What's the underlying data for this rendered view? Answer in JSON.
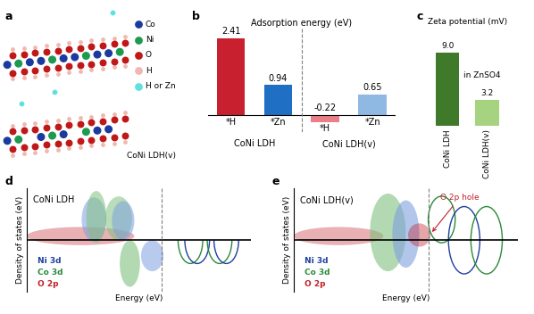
{
  "chart_data": [
    {
      "type": "bar",
      "panel": "b",
      "title": "Adsorption energy (eV)",
      "categories": [
        "*H",
        "*Zn",
        "*H",
        "*Zn"
      ],
      "groups": [
        "CoNi LDH",
        "CoNi LDH",
        "CoNi LDH(v)",
        "CoNi LDH(v)"
      ],
      "values": [
        2.41,
        0.94,
        -0.22,
        0.65
      ],
      "colors": [
        "#c8202e",
        "#1f6fc4",
        "#ea7f8a",
        "#8fb8e2"
      ],
      "data_labels": true,
      "tick_labels": false
    },
    {
      "type": "bar",
      "panel": "c",
      "title": "Zeta potential (mV)",
      "annotation": "in ZnSO4",
      "categories": [
        "CoNi LDH",
        "CoNi LDH(v)"
      ],
      "values": [
        9.0,
        3.2
      ],
      "value_labels": [
        "9.0",
        "3.2"
      ],
      "colors": [
        "#3f7a2a",
        "#a5d37f"
      ],
      "data_labels": true,
      "tick_labels": false
    }
  ],
  "panels": {
    "a": {
      "panel": "a",
      "label": "CoNi LDH(v)",
      "legend": [
        {
          "label": "Co",
          "color": "#1a3aa0"
        },
        {
          "label": "Ni",
          "color": "#1e9a50"
        },
        {
          "label": "O",
          "color": "#c01818"
        },
        {
          "label": "H",
          "color": "#f0b8b0"
        },
        {
          "label": "H or Zn",
          "color": "#5fe0e0"
        }
      ]
    },
    "d": {
      "panel": "d",
      "title": "CoNi LDH",
      "xlabel": "Energy (eV)",
      "ylabel": "Density of states (eV)",
      "legend": [
        {
          "label": "Ni 3d",
          "color": "#1f3f9f"
        },
        {
          "label": "Co 3d",
          "color": "#2a8a3a"
        },
        {
          "label": "O 2p",
          "color": "#c0202a"
        }
      ]
    },
    "e": {
      "panel": "e",
      "title": "CoNi LDH(v)",
      "xlabel": "Energy (eV)",
      "ylabel": "Density of states (eV)",
      "annotation": "O 2p hole",
      "legend": [
        {
          "label": "Ni 3d",
          "color": "#1f3f9f"
        },
        {
          "label": "Co 3d",
          "color": "#2a8a3a"
        },
        {
          "label": "O 2p",
          "color": "#c0202a"
        }
      ]
    }
  }
}
